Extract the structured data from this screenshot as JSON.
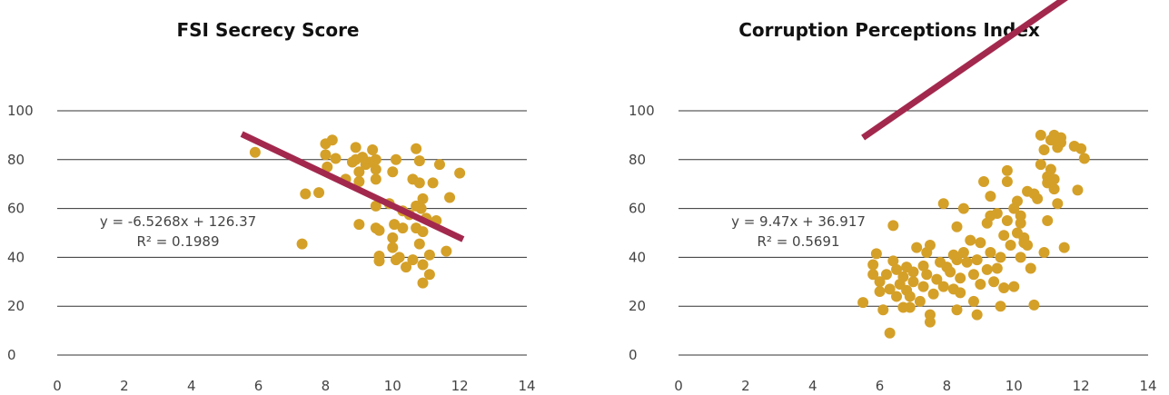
{
  "chart_data": [
    {
      "type": "scatter",
      "title": "FSI Secrecy Score",
      "xlabel": "",
      "ylabel": "",
      "xlim": [
        0,
        14
      ],
      "ylim": [
        0,
        100
      ],
      "x_ticks": [
        "0",
        "2",
        "4",
        "6",
        "8",
        "10",
        "12",
        "14"
      ],
      "y_ticks": [
        "0",
        "20",
        "40",
        "60",
        "80",
        "100"
      ],
      "grid": "horizontal",
      "colors": {
        "points": "#d4a028",
        "trendline": "#a3284e"
      },
      "trendline": {
        "slope": -6.5268,
        "intercept": 126.37,
        "x_range": [
          5.5,
          12.1
        ]
      },
      "equation": "y = -6.5268x + 126.37",
      "r_squared": "R² = 0.1989",
      "points": [
        [
          5.9,
          83
        ],
        [
          7.3,
          45.5
        ],
        [
          7.4,
          66
        ],
        [
          7.8,
          66.5
        ],
        [
          8.0,
          82
        ],
        [
          8.0,
          86.5
        ],
        [
          8.05,
          77
        ],
        [
          8.2,
          88
        ],
        [
          8.3,
          80.5
        ],
        [
          8.6,
          72
        ],
        [
          8.8,
          79
        ],
        [
          8.9,
          80
        ],
        [
          8.9,
          85
        ],
        [
          9.0,
          75
        ],
        [
          9.0,
          71
        ],
        [
          9.0,
          53.5
        ],
        [
          9.1,
          81
        ],
        [
          9.2,
          78
        ],
        [
          9.3,
          79
        ],
        [
          9.4,
          84
        ],
        [
          9.5,
          76
        ],
        [
          9.5,
          80
        ],
        [
          9.5,
          72
        ],
        [
          9.5,
          61
        ],
        [
          9.5,
          52
        ],
        [
          9.6,
          51
        ],
        [
          9.6,
          38.5
        ],
        [
          9.6,
          40.5
        ],
        [
          9.9,
          62
        ],
        [
          10.0,
          75
        ],
        [
          10.0,
          48
        ],
        [
          10.0,
          44
        ],
        [
          10.05,
          53.5
        ],
        [
          10.1,
          80
        ],
        [
          10.1,
          39
        ],
        [
          10.2,
          40
        ],
        [
          10.3,
          59
        ],
        [
          10.3,
          52
        ],
        [
          10.4,
          36
        ],
        [
          10.5,
          57.5
        ],
        [
          10.6,
          72
        ],
        [
          10.6,
          39
        ],
        [
          10.7,
          52
        ],
        [
          10.7,
          84.5
        ],
        [
          10.7,
          61
        ],
        [
          10.8,
          70.5
        ],
        [
          10.8,
          79.5
        ],
        [
          10.8,
          45.5
        ],
        [
          10.85,
          60
        ],
        [
          10.9,
          64
        ],
        [
          10.9,
          50.5
        ],
        [
          10.9,
          37
        ],
        [
          10.9,
          29.5
        ],
        [
          11.0,
          56
        ],
        [
          11.1,
          33
        ],
        [
          11.1,
          41
        ],
        [
          11.2,
          70.5
        ],
        [
          11.3,
          55
        ],
        [
          11.4,
          78
        ],
        [
          11.6,
          42.5
        ],
        [
          11.7,
          64.5
        ],
        [
          12.0,
          74.5
        ]
      ]
    },
    {
      "type": "scatter",
      "title": "Corruption Perceptions Index",
      "xlabel": "",
      "ylabel": "",
      "xlim": [
        0,
        14
      ],
      "ylim": [
        0,
        100
      ],
      "x_ticks": [
        "0",
        "2",
        "4",
        "6",
        "8",
        "10",
        "12",
        "14"
      ],
      "y_ticks": [
        "0",
        "20",
        "40",
        "60",
        "80",
        "100"
      ],
      "grid": "horizontal",
      "colors": {
        "points": "#d4a028",
        "trendline": "#a3284e"
      },
      "trendline": {
        "slope": 9.47,
        "intercept": 36.917,
        "x_range": [
          5.5,
          12.1
        ]
      },
      "equation": "y = 9.47x + 36.917",
      "r_squared": "R² = 0.5691",
      "points": [
        [
          5.5,
          21.5
        ],
        [
          5.8,
          37
        ],
        [
          5.8,
          33
        ],
        [
          5.9,
          41.5
        ],
        [
          6.0,
          26
        ],
        [
          6.0,
          30
        ],
        [
          6.1,
          18.5
        ],
        [
          6.2,
          33
        ],
        [
          6.3,
          27
        ],
        [
          6.3,
          9
        ],
        [
          6.4,
          53
        ],
        [
          6.4,
          38.5
        ],
        [
          6.5,
          24
        ],
        [
          6.5,
          35
        ],
        [
          6.6,
          29
        ],
        [
          6.7,
          19.5
        ],
        [
          6.7,
          32
        ],
        [
          6.8,
          26.5
        ],
        [
          6.8,
          36
        ],
        [
          6.9,
          24
        ],
        [
          6.9,
          19.5
        ],
        [
          7.0,
          30
        ],
        [
          7.0,
          34
        ],
        [
          7.1,
          44
        ],
        [
          7.2,
          22
        ],
        [
          7.3,
          36.5
        ],
        [
          7.3,
          28
        ],
        [
          7.4,
          42
        ],
        [
          7.4,
          33
        ],
        [
          7.5,
          16.5
        ],
        [
          7.5,
          13.5
        ],
        [
          7.5,
          45
        ],
        [
          7.6,
          25
        ],
        [
          7.7,
          31
        ],
        [
          7.8,
          38
        ],
        [
          7.9,
          28
        ],
        [
          7.9,
          62
        ],
        [
          8.0,
          36
        ],
        [
          8.1,
          34
        ],
        [
          8.2,
          41
        ],
        [
          8.2,
          27
        ],
        [
          8.3,
          39
        ],
        [
          8.3,
          52.5
        ],
        [
          8.3,
          18.5
        ],
        [
          8.4,
          31.5
        ],
        [
          8.4,
          25.5
        ],
        [
          8.5,
          60
        ],
        [
          8.5,
          42
        ],
        [
          8.6,
          38
        ],
        [
          8.7,
          47
        ],
        [
          8.8,
          22
        ],
        [
          8.8,
          33
        ],
        [
          8.9,
          39
        ],
        [
          8.9,
          16.5
        ],
        [
          9.0,
          46
        ],
        [
          9.0,
          29
        ],
        [
          9.1,
          71
        ],
        [
          9.2,
          35
        ],
        [
          9.2,
          54
        ],
        [
          9.3,
          57
        ],
        [
          9.3,
          65
        ],
        [
          9.3,
          42
        ],
        [
          9.4,
          30
        ],
        [
          9.5,
          58
        ],
        [
          9.5,
          35.5
        ],
        [
          9.6,
          40
        ],
        [
          9.6,
          20
        ],
        [
          9.7,
          49
        ],
        [
          9.7,
          27.5
        ],
        [
          9.8,
          55
        ],
        [
          9.8,
          71
        ],
        [
          9.8,
          75.5
        ],
        [
          9.9,
          45
        ],
        [
          10.0,
          28
        ],
        [
          10.0,
          60
        ],
        [
          10.1,
          63
        ],
        [
          10.1,
          50
        ],
        [
          10.2,
          40
        ],
        [
          10.2,
          54
        ],
        [
          10.2,
          57
        ],
        [
          10.3,
          48
        ],
        [
          10.3,
          46
        ],
        [
          10.4,
          67
        ],
        [
          10.4,
          45
        ],
        [
          10.5,
          35.5
        ],
        [
          10.6,
          20.5
        ],
        [
          10.6,
          66
        ],
        [
          10.7,
          64
        ],
        [
          10.8,
          78
        ],
        [
          10.8,
          90
        ],
        [
          10.9,
          42
        ],
        [
          10.9,
          84
        ],
        [
          11.0,
          70.5
        ],
        [
          11.0,
          55
        ],
        [
          11.0,
          73
        ],
        [
          11.1,
          76
        ],
        [
          11.1,
          88
        ],
        [
          11.2,
          90
        ],
        [
          11.2,
          68
        ],
        [
          11.2,
          72
        ],
        [
          11.3,
          62
        ],
        [
          11.3,
          85
        ],
        [
          11.4,
          89
        ],
        [
          11.4,
          87
        ],
        [
          11.5,
          44
        ],
        [
          11.8,
          85.5
        ],
        [
          11.9,
          67.5
        ],
        [
          12.0,
          84.5
        ],
        [
          12.1,
          80.5
        ]
      ]
    }
  ]
}
